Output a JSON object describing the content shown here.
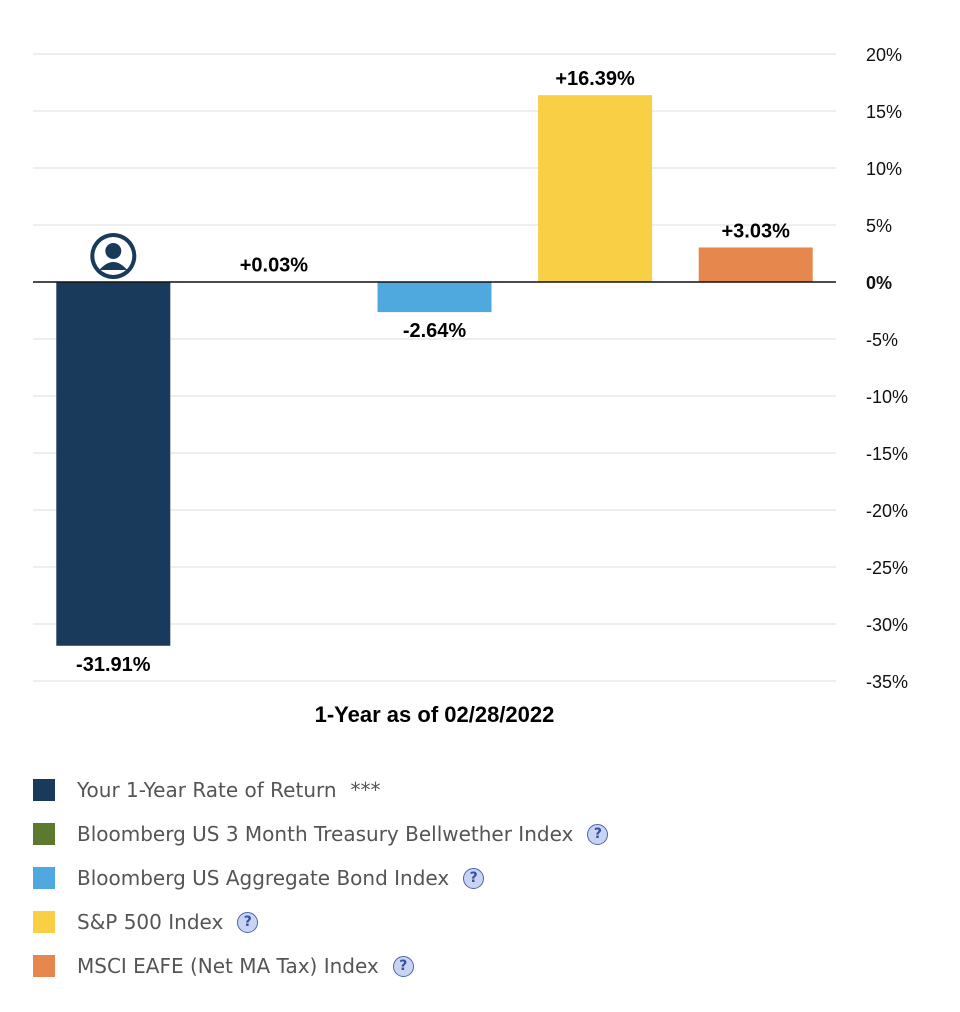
{
  "chart_data": {
    "type": "bar",
    "xlabel": "1-Year as of 02/28/2022",
    "ylim": [
      -35,
      20
    ],
    "y_ticks": [
      20,
      15,
      10,
      5,
      0,
      -5,
      -10,
      -15,
      -20,
      -25,
      -30,
      -35
    ],
    "y_tick_labels": [
      "20%",
      "15%",
      "10%",
      "5%",
      "0%",
      "-5%",
      "-10%",
      "-15%",
      "-20%",
      "-25%",
      "-30%",
      "-35%"
    ],
    "y_axis_position": "right",
    "grid": true,
    "legend_position": "bottom",
    "series": [
      {
        "name": "Your 1-Year Rate of Return",
        "value": -31.91,
        "label": "-31.91%",
        "color": "#1a3a5c",
        "legend_suffix": "***",
        "help": false,
        "icon": "user-avatar-icon"
      },
      {
        "name": "Bloomberg US 3 Month Treasury Bellwether Index",
        "value": 0.03,
        "label": "+0.03%",
        "color": "#5b7a2e",
        "help": true
      },
      {
        "name": "Bloomberg US Aggregate Bond Index",
        "value": -2.64,
        "label": "-2.64%",
        "color": "#4fa8de",
        "help": true
      },
      {
        "name": "S&P 500 Index",
        "value": 16.39,
        "label": "+16.39%",
        "color": "#f8cf45",
        "help": true
      },
      {
        "name": "MSCI EAFE (Net MA Tax) Index",
        "value": 3.03,
        "label": "+3.03%",
        "color": "#e6884d",
        "help": true
      }
    ]
  },
  "legend": {
    "help_glyph": "?"
  }
}
